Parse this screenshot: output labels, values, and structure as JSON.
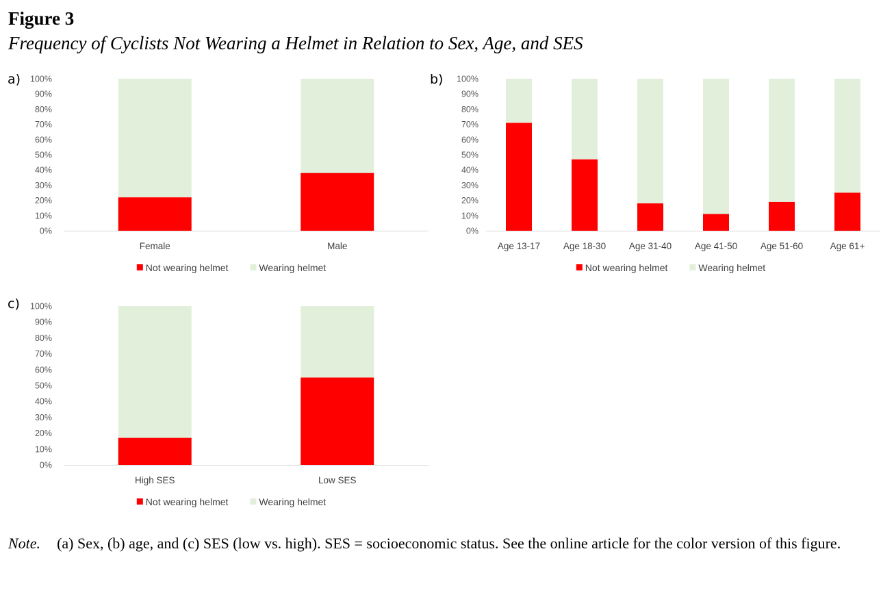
{
  "figure": {
    "number": "Figure 3",
    "title": "Frequency of Cyclists Not Wearing a Helmet in Relation to Sex, Age, and SES"
  },
  "colors": {
    "not_wearing": "#ff0000",
    "wearing": "#e2efda",
    "axis": "#d9d9d9"
  },
  "chart_data": [
    {
      "panel": "a)",
      "type": "bar",
      "stacked": true,
      "categories": [
        "Female",
        "Male"
      ],
      "series": [
        {
          "name": "Not wearing helmet",
          "values": [
            22,
            38
          ]
        },
        {
          "name": "Wearing helmet",
          "values": [
            78,
            62
          ]
        }
      ],
      "yticks": [
        "0%",
        "10%",
        "20%",
        "30%",
        "40%",
        "50%",
        "60%",
        "70%",
        "80%",
        "90%",
        "100%"
      ],
      "ylim": [
        0,
        100
      ],
      "legend": "bottom"
    },
    {
      "panel": "b)",
      "type": "bar",
      "stacked": true,
      "categories": [
        "Age 13-17",
        "Age 18-30",
        "Age 31-40",
        "Age 41-50",
        "Age 51-60",
        "Age 61+"
      ],
      "series": [
        {
          "name": "Not wearing helmet",
          "values": [
            71,
            47,
            18,
            11,
            19,
            25
          ]
        },
        {
          "name": "Wearing helmet",
          "values": [
            29,
            53,
            82,
            89,
            81,
            75
          ]
        }
      ],
      "yticks": [
        "0%",
        "10%",
        "20%",
        "30%",
        "40%",
        "50%",
        "60%",
        "70%",
        "80%",
        "90%",
        "100%"
      ],
      "ylim": [
        0,
        100
      ],
      "legend": "bottom"
    },
    {
      "panel": "c)",
      "type": "bar",
      "stacked": true,
      "categories": [
        "High SES",
        "Low SES"
      ],
      "series": [
        {
          "name": "Not wearing helmet",
          "values": [
            17,
            55
          ]
        },
        {
          "name": "Wearing helmet",
          "values": [
            83,
            45
          ]
        }
      ],
      "yticks": [
        "0%",
        "10%",
        "20%",
        "30%",
        "40%",
        "50%",
        "60%",
        "70%",
        "80%",
        "90%",
        "100%"
      ],
      "ylim": [
        0,
        100
      ],
      "legend": "bottom"
    }
  ],
  "note": {
    "label": "Note.",
    "text": "(a) Sex, (b) age, and (c) SES (low vs. high). SES = socioeconomic status. See the online article for the color version of this figure."
  }
}
